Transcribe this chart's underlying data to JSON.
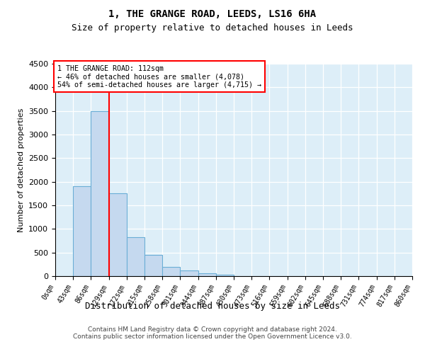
{
  "title1": "1, THE GRANGE ROAD, LEEDS, LS16 6HA",
  "title2": "Size of property relative to detached houses in Leeds",
  "xlabel": "Distribution of detached houses by size in Leeds",
  "ylabel": "Number of detached properties",
  "bin_labels": [
    "0sqm",
    "43sqm",
    "86sqm",
    "129sqm",
    "172sqm",
    "215sqm",
    "258sqm",
    "301sqm",
    "344sqm",
    "387sqm",
    "430sqm",
    "473sqm",
    "516sqm",
    "559sqm",
    "602sqm",
    "645sqm",
    "688sqm",
    "731sqm",
    "774sqm",
    "817sqm",
    "860sqm"
  ],
  "bar_heights": [
    0,
    1900,
    3500,
    1750,
    820,
    450,
    190,
    120,
    65,
    30,
    0,
    0,
    0,
    0,
    0,
    0,
    0,
    0,
    0,
    0
  ],
  "bar_color": "#c5d9ef",
  "bar_edge_color": "#6aaed6",
  "annotation_text_line1": "1 THE GRANGE ROAD: 112sqm",
  "annotation_text_line2": "← 46% of detached houses are smaller (4,078)",
  "annotation_text_line3": "54% of semi-detached houses are larger (4,715) →",
  "vline_color": "red",
  "vline_x": 3,
  "ylim": [
    0,
    4500
  ],
  "yticks": [
    0,
    500,
    1000,
    1500,
    2000,
    2500,
    3000,
    3500,
    4000,
    4500
  ],
  "grid_color": "white",
  "bg_color": "#ddeef8",
  "footer_line1": "Contains HM Land Registry data © Crown copyright and database right 2024.",
  "footer_line2": "Contains public sector information licensed under the Open Government Licence v3.0."
}
